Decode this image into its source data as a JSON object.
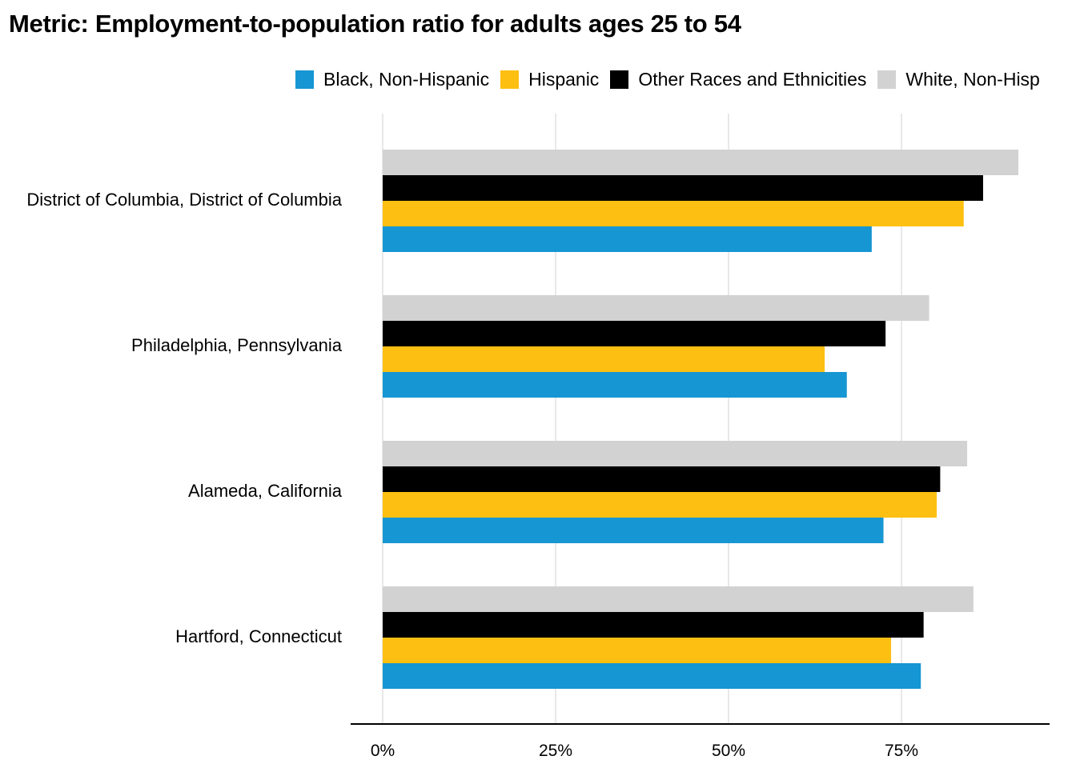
{
  "chart_data": {
    "type": "bar",
    "orientation": "horizontal",
    "title": "Metric: Employment-to-population ratio for adults ages 25 to 54",
    "categories": [
      "District of Columbia, District of Columbia",
      "Philadelphia, Pennsylvania",
      "Alameda, California",
      "Hartford, Connecticut"
    ],
    "series": [
      {
        "name": "Black, Non-Hispanic",
        "color": "#1696d2",
        "values": [
          70.7,
          67.1,
          72.4,
          77.8
        ]
      },
      {
        "name": "Hispanic",
        "color": "#fdbf11",
        "values": [
          84.0,
          63.9,
          80.1,
          73.5
        ]
      },
      {
        "name": "Other Races and Ethnicities",
        "color": "#000000",
        "values": [
          86.8,
          72.7,
          80.6,
          78.2
        ]
      },
      {
        "name": "White, Non-Hispanic",
        "color": "#d2d2d2",
        "values": [
          91.9,
          79.0,
          84.5,
          85.4
        ]
      }
    ],
    "legend_labels": [
      "Black, Non-Hispanic",
      "Hispanic",
      "Other Races and Ethnicities",
      "White, Non-Hisp"
    ],
    "xticks": [
      "0%",
      "25%",
      "50%",
      "75%"
    ],
    "xtick_values": [
      0,
      25,
      50,
      75
    ],
    "xlim": [
      0,
      100
    ],
    "grid": true,
    "legend_position": "top"
  }
}
